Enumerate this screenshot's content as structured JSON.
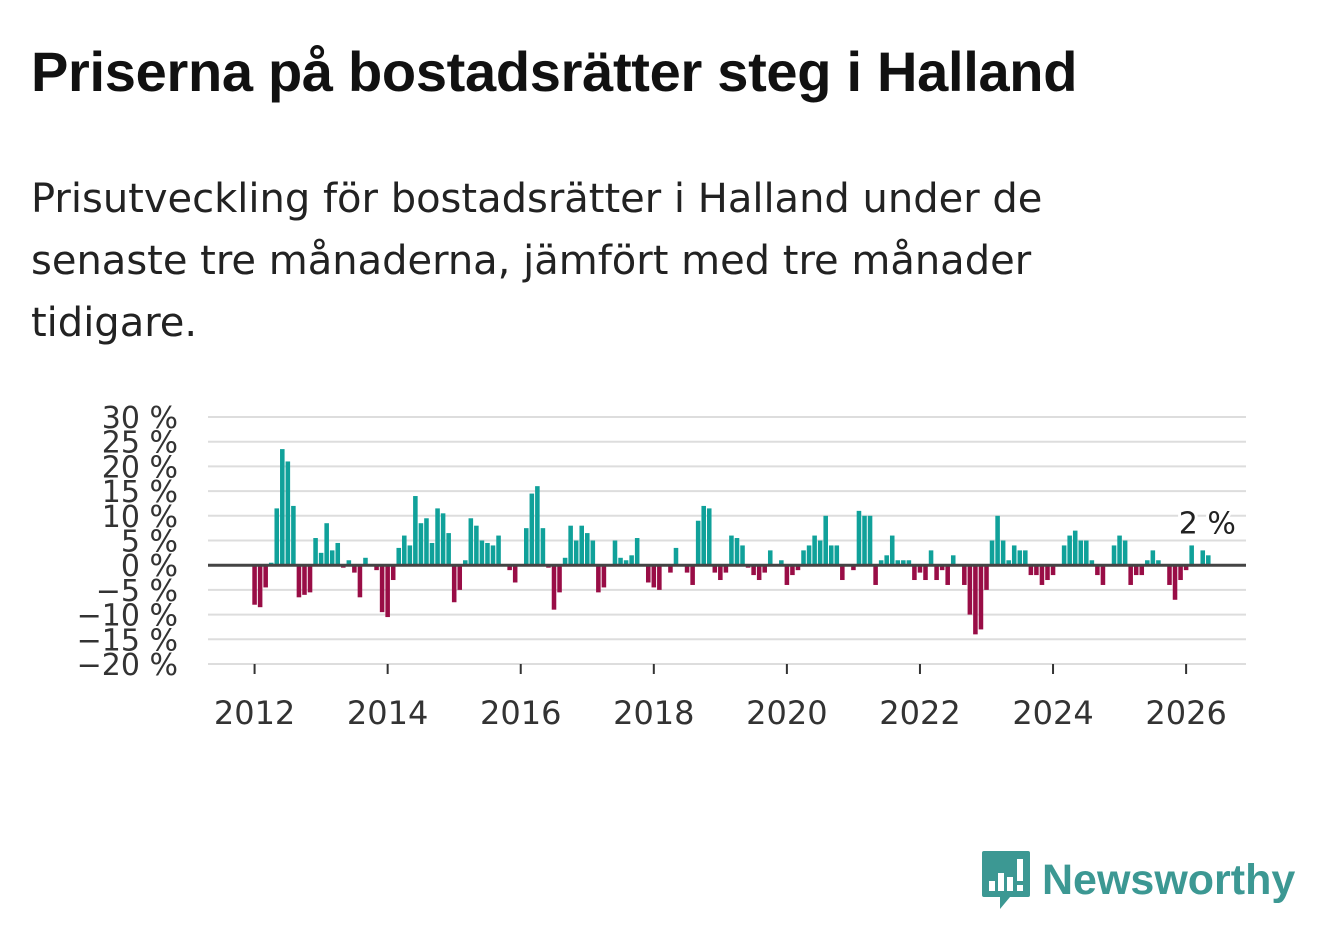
{
  "title": "Priserna på bostadsrätter steg i Halland",
  "subtitle": "Prisutveckling för bostadsrätter i Halland under de senaste tre månaderna, jämfört med tre månader tidigare.",
  "brand": "Newsworthy",
  "colors": {
    "positive": "#10a19a",
    "negative": "#990d46",
    "grid": "#dddddd",
    "zero": "#444444",
    "brand": "#3c9893"
  },
  "chart_data": {
    "type": "bar",
    "title": "Priserna på bostadsrätter steg i Halland",
    "xlabel": "",
    "ylabel": "",
    "ylim": [
      -20,
      30
    ],
    "xlim": [
      2011.3,
      2026.9
    ],
    "y_ticks": [
      30,
      25,
      20,
      15,
      10,
      5,
      0,
      -5,
      -10,
      -15,
      -20
    ],
    "y_tick_labels": [
      "30 %",
      "25 %",
      "20 %",
      "15 %",
      "10 %",
      "5 %",
      "0 %",
      "−5 %",
      "−10 %",
      "−15 %",
      "−20 %"
    ],
    "x_ticks": [
      2012,
      2014,
      2016,
      2018,
      2020,
      2022,
      2024,
      2026
    ],
    "x_tick_labels": [
      "2012",
      "2014",
      "2016",
      "2018",
      "2020",
      "2022",
      "2024",
      "2026"
    ],
    "last_value_label": "2 %",
    "start": "2012-01",
    "frequency": "monthly",
    "values": [
      -8,
      -8.5,
      -4.5,
      0.5,
      11.5,
      23.5,
      21,
      12,
      -6.5,
      -6,
      -5.5,
      5.5,
      2.5,
      8.5,
      3,
      4.5,
      -0.5,
      1,
      -1.5,
      -6.5,
      1.5,
      0,
      -1,
      -9.5,
      -10.5,
      -3,
      3.5,
      6,
      4,
      14,
      8.5,
      9.5,
      4.5,
      11.5,
      10.5,
      6.5,
      -7.5,
      -5,
      1,
      9.5,
      8,
      5,
      4.5,
      4,
      6,
      0,
      -1,
      -3.5,
      0,
      7.5,
      14.5,
      16,
      7.5,
      -0.5,
      -9,
      -5.5,
      1.5,
      8,
      5,
      8,
      6.5,
      5,
      -5.5,
      -4.5,
      0,
      5,
      1.5,
      1,
      2,
      5.5,
      0,
      -3.5,
      -4.5,
      -5,
      0,
      -1.5,
      3.5,
      0,
      -1.5,
      -4,
      9,
      12,
      11.5,
      -1.5,
      -3,
      -1.5,
      6,
      5.5,
      4,
      -0.5,
      -2,
      -3,
      -1.5,
      3,
      0,
      1,
      -4,
      -2,
      -1,
      3,
      4,
      6,
      5,
      10,
      4,
      4,
      -3,
      0,
      -1,
      11,
      10,
      10,
      -4,
      1,
      2,
      6,
      1,
      1,
      1,
      -3,
      -1.5,
      -3,
      3,
      -3,
      -1,
      -4,
      2,
      0,
      -4,
      -10,
      -14,
      -13,
      -5,
      5,
      10,
      5,
      1,
      4,
      3,
      3,
      -2,
      -2,
      -4,
      -3,
      -2,
      0,
      4,
      6,
      7,
      5,
      5,
      1,
      -2,
      -4,
      0,
      4,
      6,
      5,
      -4,
      -2,
      -2,
      1,
      3,
      1,
      0,
      -4,
      -7,
      -3,
      -1,
      4,
      0,
      3,
      2
    ]
  }
}
